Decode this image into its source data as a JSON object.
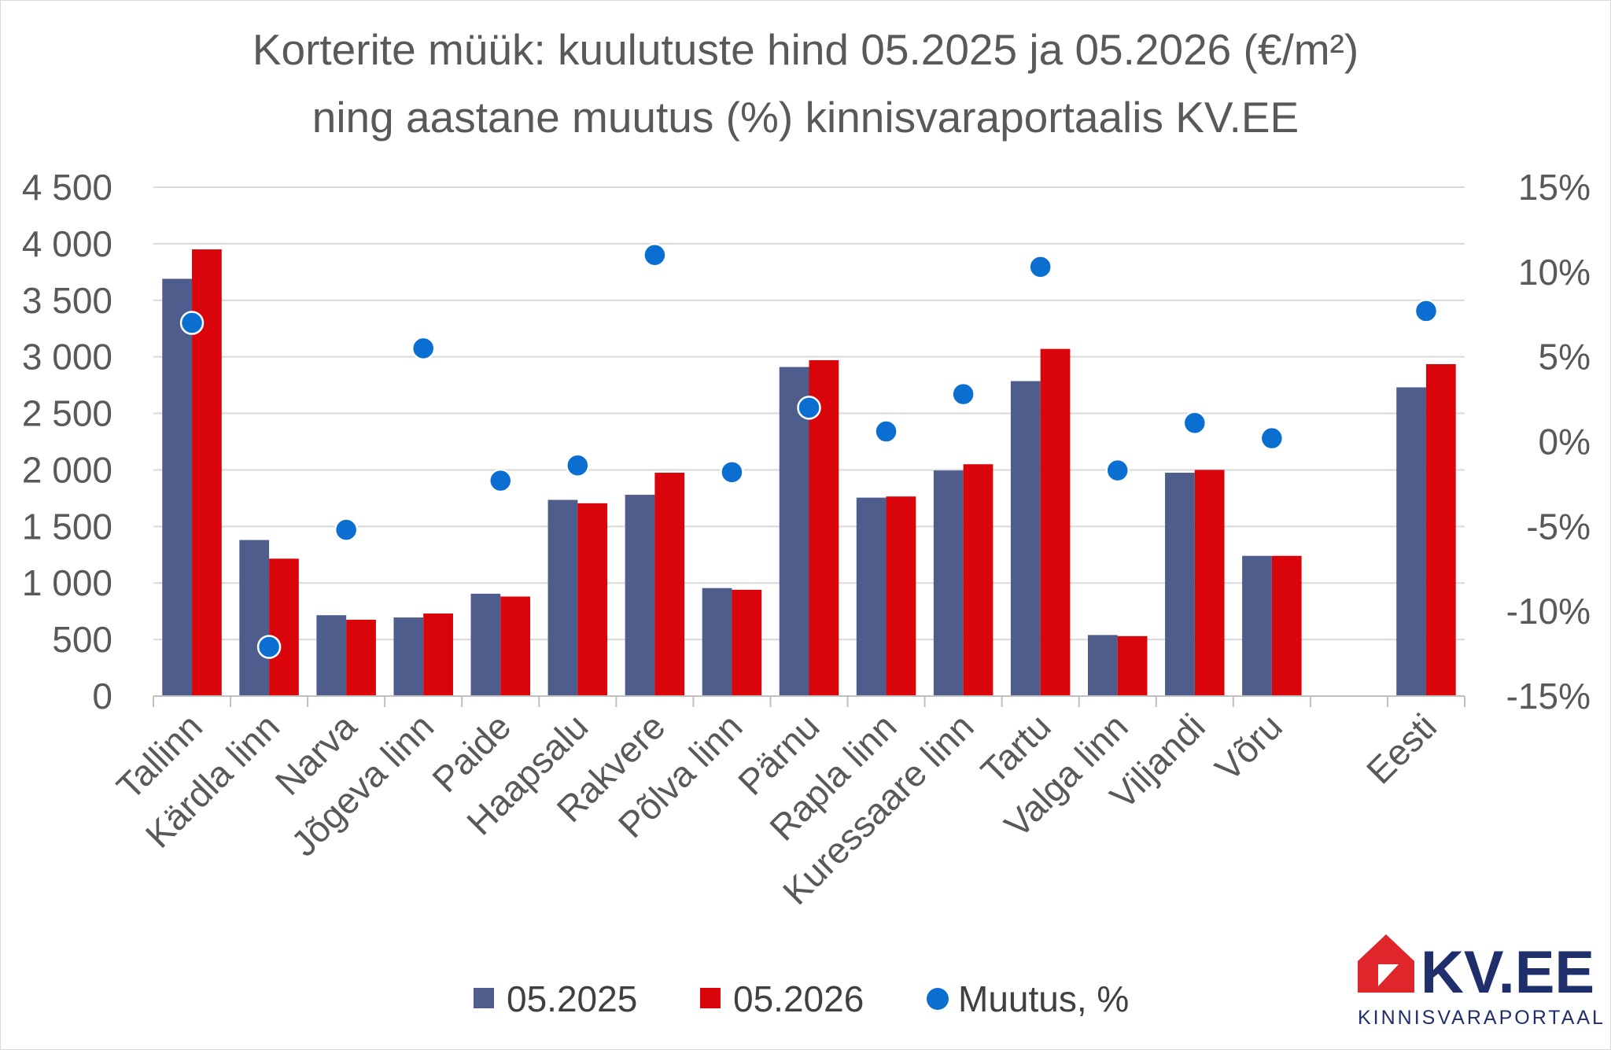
{
  "chart_data": {
    "type": "bar",
    "title_line1": "Korterite müük: kuulutuste hind 05.2025 ja 05.2026 (€/m²)",
    "title_line2": "ning aastane muutus (%) kinnisvaraportaalis KV.EE",
    "categories": [
      "Tallinn",
      "Kärdla linn",
      "Narva",
      "Jõgeva linn",
      "Paide",
      "Haapsalu",
      "Rakvere",
      "Põlva linn",
      "Pärnu",
      "Rapla linn",
      "Kuressaare linn",
      "Tartu",
      "Valga linn",
      "Viljandi",
      "Võru",
      "",
      "Eesti"
    ],
    "series": [
      {
        "name": "05.2025",
        "axis": "left",
        "kind": "bar",
        "color": "#4e5d8b",
        "values": [
          3690,
          1380,
          715,
          695,
          905,
          1735,
          1780,
          955,
          2910,
          1755,
          1995,
          2785,
          540,
          1975,
          1240,
          null,
          2730
        ]
      },
      {
        "name": "05.2026",
        "axis": "left",
        "kind": "bar",
        "color": "#d9050b",
        "values": [
          3950,
          1215,
          675,
          730,
          880,
          1705,
          1975,
          940,
          2970,
          1765,
          2050,
          3070,
          530,
          2000,
          1240,
          null,
          2935
        ]
      },
      {
        "name": "Muutus, %",
        "axis": "right",
        "kind": "scatter",
        "color": "#0a6fd1",
        "values": [
          7.0,
          -12.1,
          -5.2,
          5.5,
          -2.3,
          -1.4,
          11.0,
          -1.8,
          2.0,
          0.6,
          2.8,
          10.3,
          -1.7,
          1.1,
          0.2,
          null,
          7.7
        ]
      }
    ],
    "y_left": {
      "min": 0,
      "max": 4500,
      "step": 500,
      "tick_labels": [
        "0",
        "500",
        "1 000",
        "1 500",
        "2 000",
        "2 500",
        "3 000",
        "3 500",
        "4 000",
        "4 500"
      ]
    },
    "y_right": {
      "min": -15,
      "max": 15,
      "step": 5,
      "tick_labels": [
        "-15%",
        "-10%",
        "-5%",
        "0%",
        "5%",
        "10%",
        "15%"
      ]
    },
    "grid": true,
    "legend_position": "bottom"
  },
  "logo": {
    "text": "KV.EE",
    "subtitle": "KINNISVARAPORTAAL",
    "color": "#1f2f6b",
    "accent": "#e0252b"
  }
}
